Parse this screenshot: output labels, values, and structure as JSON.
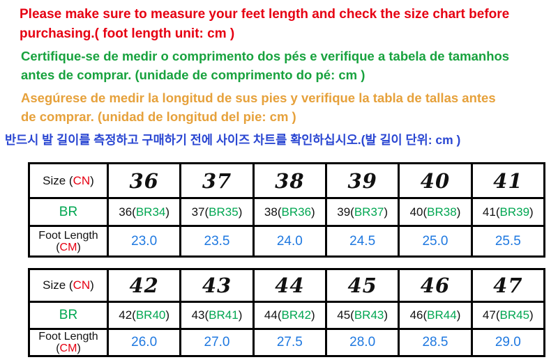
{
  "colors": {
    "notice_red": "#e60012",
    "notice_green": "#18a23e",
    "notice_orange": "#e6a13b",
    "notice_blue": "#2946d2",
    "table_code_green": "#00a651",
    "foot_value_blue": "#1e78e0",
    "table_border": "#000000"
  },
  "notices": [
    {
      "lang": "english",
      "lines": [
        "Please make sure to measure your feet length and check the size chart before",
        "purchasing.( foot length unit: cm )"
      ]
    },
    {
      "lang": "portuguese",
      "lines": [
        "Certifique-se de medir o comprimento dos pés e verifique a tabela de tamanhos",
        "antes de comprar. (unidade de comprimento do pé: cm )"
      ]
    },
    {
      "lang": "spanish",
      "lines": [
        "Asegúrese de medir la longitud de sus pies y verifique la tabla de tallas antes",
        "de comprar. (unidad de longitud del pie: cm )"
      ]
    },
    {
      "lang": "korean",
      "lines": [
        "반드시 발 길이를 측정하고 구매하기 전에 사이즈 차트를 확인하십시오.(발 길이 단위: cm )"
      ]
    }
  ],
  "chart": {
    "labels": {
      "size_pre": "Size (",
      "size_cn": "CN",
      "size_suf": ")",
      "br": "BR",
      "foot_line1": "Foot Length",
      "foot_pre": "(",
      "foot_cm": "CM",
      "foot_suf": ")"
    },
    "tables": [
      {
        "sizes": [
          "36",
          "37",
          "38",
          "39",
          "40",
          "41"
        ],
        "br": [
          {
            "pre": "36(",
            "code": "BR34",
            "suf": ")"
          },
          {
            "pre": "37(",
            "code": "BR35",
            "suf": ")"
          },
          {
            "pre": "38(",
            "code": "BR36",
            "suf": ")"
          },
          {
            "pre": "39(",
            "code": "BR37",
            "suf": ")"
          },
          {
            "pre": "40(",
            "code": "BR38",
            "suf": ")"
          },
          {
            "pre": "41(",
            "code": "BR39",
            "suf": ")"
          }
        ],
        "foot": [
          "23.0",
          "23.5",
          "24.0",
          "24.5",
          "25.0",
          "25.5"
        ]
      },
      {
        "sizes": [
          "42",
          "43",
          "44",
          "45",
          "46",
          "47"
        ],
        "br": [
          {
            "pre": "42(",
            "code": "BR40",
            "suf": ")"
          },
          {
            "pre": "43(",
            "code": "BR41",
            "suf": ")"
          },
          {
            "pre": "44(",
            "code": "BR42",
            "suf": ")"
          },
          {
            "pre": "45(",
            "code": "BR43",
            "suf": ")"
          },
          {
            "pre": "46(",
            "code": "BR44",
            "suf": ")"
          },
          {
            "pre": "47(",
            "code": "BR45",
            "suf": ")"
          }
        ],
        "foot": [
          "26.0",
          "27.0",
          "27.5",
          "28.0",
          "28.5",
          "29.0"
        ]
      }
    ]
  }
}
